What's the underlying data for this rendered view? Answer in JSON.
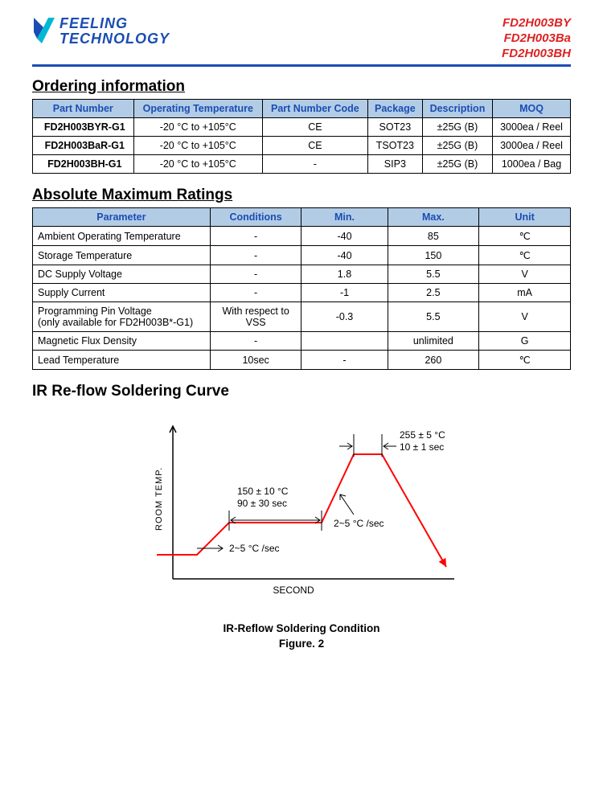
{
  "header": {
    "logo_line1": "FEELING",
    "logo_line2": "TECHNOLOGY",
    "logo_color": "#1a4db3",
    "product_codes": [
      "FD2H003BY",
      "FD2H003Ba",
      "FD2H003BH"
    ],
    "product_code_color": "#d22"
  },
  "ordering": {
    "title": "Ordering information",
    "columns": [
      "Part Number",
      "Operating Temperature",
      "Part Number Code",
      "Package",
      "Description",
      "MOQ"
    ],
    "rows": [
      [
        "FD2H003BYR-G1",
        "-20 °C to +105°C",
        "CE",
        "SOT23",
        "±25G (B)",
        "3000ea / Reel"
      ],
      [
        "FD2H003BaR-G1",
        "-20 °C to +105°C",
        "CE",
        "TSOT23",
        "±25G (B)",
        "3000ea / Reel"
      ],
      [
        "FD2H003BH-G1",
        "-20 °C to +105°C",
        "-",
        "SIP3",
        "±25G (B)",
        "1000ea / Bag"
      ]
    ]
  },
  "ratings": {
    "title": "Absolute Maximum Ratings",
    "columns": [
      "Parameter",
      "Conditions",
      "Min.",
      "Max.",
      "Unit"
    ],
    "rows": [
      [
        "Ambient Operating Temperature",
        "-",
        "-40",
        "85",
        "℃"
      ],
      [
        "Storage Temperature",
        "-",
        "-40",
        "150",
        "℃"
      ],
      [
        "DC Supply Voltage",
        "-",
        "1.8",
        "5.5",
        "V"
      ],
      [
        "Supply Current",
        "-",
        "-1",
        "2.5",
        "mA"
      ],
      [
        "Programming Pin Voltage\n(only available for FD2H003B*-G1)",
        "With respect to VSS",
        "-0.3",
        "5.5",
        "V"
      ],
      [
        "Magnetic Flux Density",
        "-",
        "",
        "unlimited",
        "G"
      ],
      [
        "Lead Temperature",
        "10sec",
        "-",
        "260",
        "℃"
      ]
    ],
    "col_widths_pct": [
      33,
      17,
      16,
      17,
      17
    ]
  },
  "reflow": {
    "title": "IR Re-flow Soldering Curve",
    "caption": "IR-Reflow Soldering Condition",
    "figure": "Figure. 2",
    "y_axis_label": "ROOM TEMP.",
    "x_axis_label": "SECOND",
    "curve_color": "#ff0000",
    "axis_color": "#000000",
    "background": "#ffffff",
    "line_width": 2,
    "annotations": {
      "ramp1": "2~5 °C /sec",
      "soak_temp": "150 ± 10 °C",
      "soak_time": "90 ± 30 sec",
      "ramp2": "2~5 °C /sec",
      "peak_temp": "255 ± 5 °C",
      "peak_time": "10 ± 1 sec"
    },
    "profile_points": [
      [
        30,
        180
      ],
      [
        80,
        180
      ],
      [
        120,
        140
      ],
      [
        235,
        140
      ],
      [
        275,
        55
      ],
      [
        310,
        55
      ],
      [
        390,
        195
      ]
    ],
    "chart_size": [
      420,
      260
    ]
  },
  "table_header_bg": "#b3cce6",
  "table_header_color": "#1a4db3",
  "rule_color": "#1a4db3"
}
